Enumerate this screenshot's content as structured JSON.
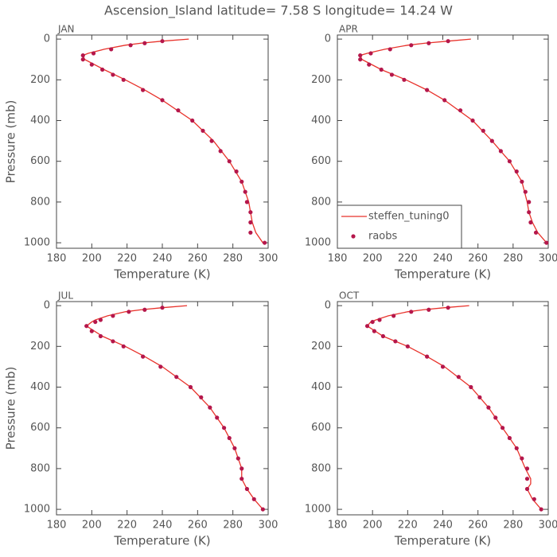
{
  "title": "Ascension_Island  latitude= 7.58 S longitude= 14.24 W",
  "chart_data": [
    {
      "type": "line",
      "title": "JAN",
      "xlabel": "Temperature (K)",
      "ylabel": "Pressure (mb)",
      "xlim": [
        180,
        300
      ],
      "xticks": [
        180,
        200,
        220,
        240,
        260,
        280,
        300
      ],
      "ylim": [
        1027,
        -20
      ],
      "yticks": [
        0,
        200,
        400,
        600,
        800,
        1000
      ],
      "series": [
        {
          "type": "line",
          "color": "#e8322b",
          "x": [
            255,
            240,
            228,
            219,
            207,
            198,
            195,
            196,
            207,
            219,
            230,
            240,
            257,
            269,
            278,
            285,
            289,
            290,
            291,
            293,
            297
          ],
          "values": [
            0,
            10,
            20,
            30,
            50,
            70,
            80,
            100,
            150,
            200,
            250,
            300,
            400,
            500,
            600,
            700,
            800,
            850,
            900,
            950,
            1000
          ]
        },
        {
          "type": "scatter",
          "color": "#b5174b",
          "x": [
            240,
            230,
            222,
            211,
            201,
            195,
            195,
            200,
            206,
            212,
            218,
            229,
            240,
            249,
            257,
            263,
            268,
            273,
            278,
            282,
            285,
            287,
            288,
            290,
            290,
            290,
            298
          ],
          "values": [
            10,
            20,
            30,
            50,
            70,
            80,
            100,
            125,
            150,
            175,
            200,
            250,
            300,
            350,
            400,
            450,
            500,
            550,
            600,
            650,
            700,
            750,
            800,
            850,
            900,
            950,
            1000
          ]
        }
      ]
    },
    {
      "type": "line",
      "title": "APR",
      "xlabel": "Temperature (K)",
      "xlim": [
        180,
        300
      ],
      "xticks": [
        180,
        200,
        220,
        240,
        260,
        280,
        300
      ],
      "ylim": [
        1027,
        -20
      ],
      "yticks": [
        0,
        200,
        400,
        600,
        800,
        1000
      ],
      "legend": "lower left",
      "series": [
        {
          "type": "line",
          "name": "steffen_tuning0",
          "color": "#e8322b",
          "x": [
            256,
            243,
            230,
            220,
            207,
            197,
            193,
            194,
            205,
            219,
            231,
            241,
            257,
            268,
            278,
            285,
            288,
            289,
            291,
            294,
            299
          ],
          "values": [
            0,
            10,
            20,
            30,
            50,
            70,
            80,
            100,
            150,
            200,
            250,
            300,
            400,
            500,
            600,
            700,
            800,
            850,
            900,
            950,
            1000
          ]
        },
        {
          "type": "scatter",
          "name": "raobs",
          "color": "#b5174b",
          "x": [
            243,
            232,
            222,
            210,
            199,
            193,
            193,
            198,
            205,
            211,
            218,
            231,
            241,
            250,
            257,
            263,
            268,
            273,
            278,
            282,
            285,
            287,
            289,
            289,
            290,
            293,
            299
          ],
          "values": [
            10,
            20,
            30,
            50,
            70,
            80,
            100,
            125,
            150,
            175,
            200,
            250,
            300,
            350,
            400,
            450,
            500,
            550,
            600,
            650,
            700,
            750,
            800,
            850,
            900,
            950,
            1000
          ]
        }
      ]
    },
    {
      "type": "line",
      "title": "JUL",
      "xlabel": "Temperature (K)",
      "ylabel": "Pressure (mb)",
      "xlim": [
        180,
        300
      ],
      "xticks": [
        180,
        200,
        220,
        240,
        260,
        280,
        300
      ],
      "ylim": [
        1027,
        -20
      ],
      "yticks": [
        0,
        200,
        400,
        600,
        800,
        1000
      ],
      "series": [
        {
          "type": "line",
          "color": "#e8322b",
          "x": [
            254,
            240,
            228,
            219,
            209,
            202,
            200,
            197,
            206,
            219,
            230,
            240,
            256,
            267,
            275,
            281,
            285,
            285,
            288,
            292,
            297
          ],
          "values": [
            0,
            10,
            20,
            30,
            50,
            70,
            80,
            100,
            150,
            200,
            250,
            300,
            400,
            500,
            600,
            700,
            800,
            850,
            900,
            950,
            1000
          ]
        },
        {
          "type": "scatter",
          "color": "#b5174b",
          "x": [
            240,
            230,
            221,
            212,
            205,
            202,
            197,
            200,
            205,
            212,
            218,
            229,
            239,
            248,
            256,
            262,
            267,
            271,
            275,
            278,
            281,
            283,
            285,
            285,
            288,
            292,
            297
          ],
          "values": [
            10,
            20,
            30,
            50,
            70,
            80,
            100,
            125,
            150,
            175,
            200,
            250,
            300,
            350,
            400,
            450,
            500,
            550,
            600,
            650,
            700,
            750,
            800,
            850,
            900,
            950,
            1000
          ]
        }
      ]
    },
    {
      "type": "line",
      "title": "OCT",
      "xlabel": "Temperature (K)",
      "xlim": [
        180,
        300
      ],
      "xticks": [
        180,
        200,
        220,
        240,
        260,
        280,
        300
      ],
      "ylim": [
        1027,
        -20
      ],
      "yticks": [
        0,
        200,
        400,
        600,
        800,
        1000
      ],
      "series": [
        {
          "type": "line",
          "color": "#e8322b",
          "x": [
            255,
            241,
            229,
            220,
            209,
            202,
            199,
            197,
            206,
            220,
            231,
            241,
            256,
            266,
            274,
            282,
            287,
            290,
            290,
            288,
            291,
            296
          ],
          "values": [
            0,
            10,
            20,
            30,
            50,
            70,
            80,
            100,
            150,
            200,
            250,
            300,
            400,
            500,
            600,
            700,
            800,
            850,
            875,
            900,
            950,
            1000
          ]
        },
        {
          "type": "scatter",
          "color": "#b5174b",
          "x": [
            243,
            232,
            222,
            212,
            204,
            200,
            197,
            201,
            206,
            213,
            220,
            231,
            240,
            249,
            256,
            261,
            266,
            270,
            274,
            278,
            282,
            285,
            288,
            288,
            288,
            292,
            296
          ],
          "values": [
            10,
            20,
            30,
            50,
            70,
            80,
            100,
            125,
            150,
            175,
            200,
            250,
            300,
            350,
            400,
            450,
            500,
            550,
            600,
            650,
            700,
            750,
            800,
            850,
            900,
            950,
            1000
          ]
        }
      ]
    }
  ]
}
